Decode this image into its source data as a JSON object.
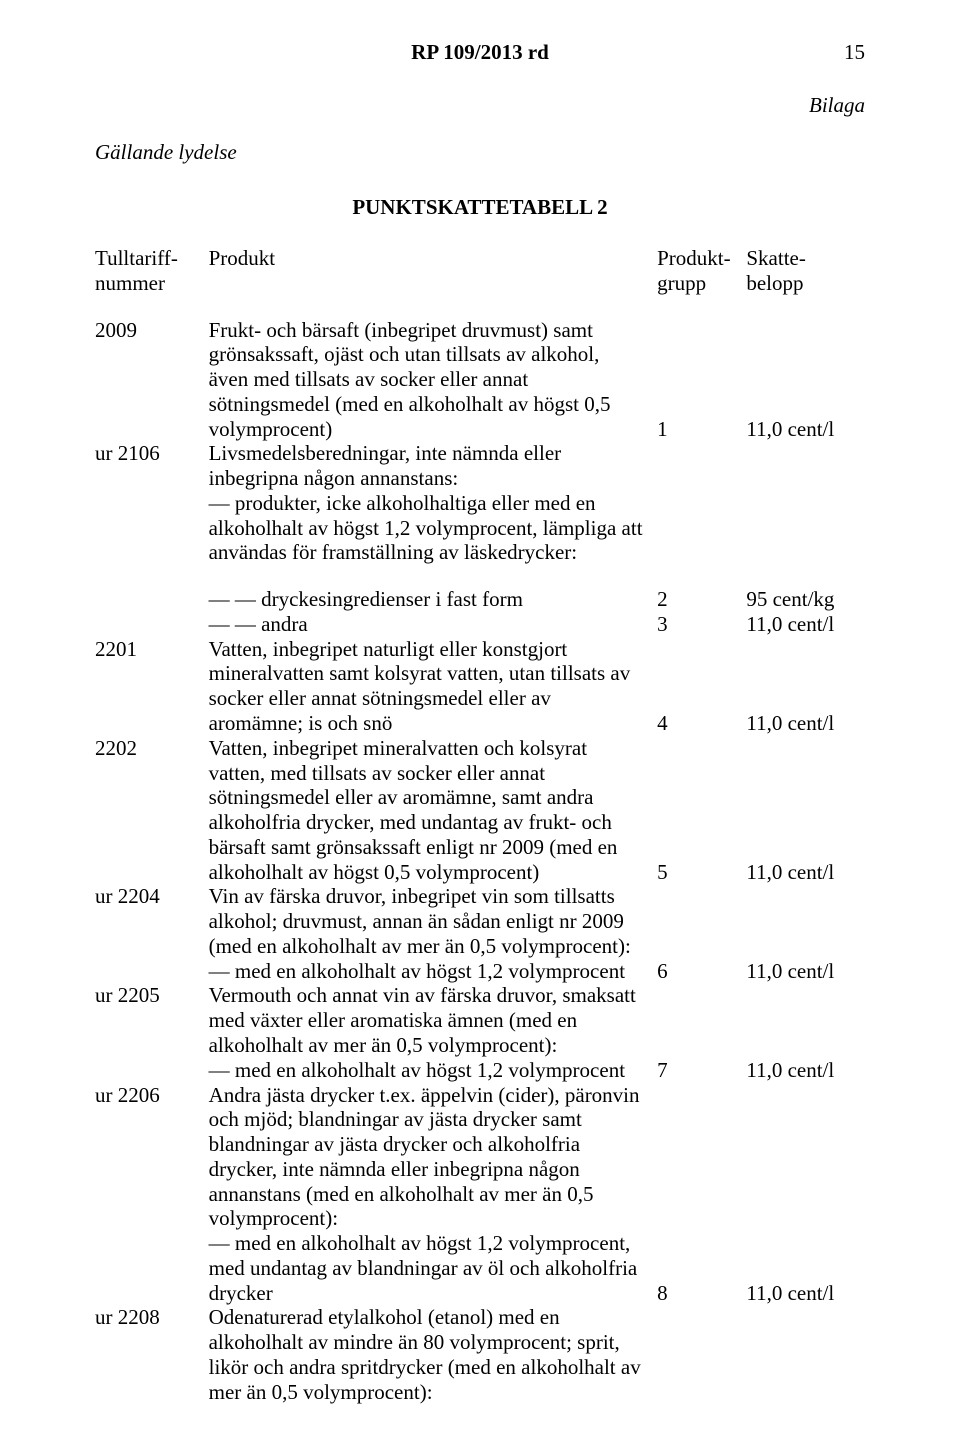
{
  "header": {
    "doc_ref": "RP 109/2013 rd",
    "page_no": "15"
  },
  "bilaga": "Bilaga",
  "gallande": "Gällande lydelse",
  "table_title": "PUNKTSKATTETABELL 2",
  "thead": {
    "c1a": "Tulltariff-",
    "c1b": "nummer",
    "c2": "Produkt",
    "c3a": "Produkt-",
    "c3b": "grupp",
    "c4a": "Skatte-",
    "c4b": "belopp"
  },
  "rows": {
    "r2009": {
      "code": "2009",
      "desc": "Frukt- och bärsaft (inbegripet druvmust) samt grönsakssaft, ojäst och utan tillsats av alkohol, även med tillsats av socker eller annat sötningsmedel (med en alkoholhalt av högst 0,5 volymprocent)",
      "grp": "1",
      "amt": "11,0 cent/l"
    },
    "r2106": {
      "code": "ur 2106",
      "desc1": "Livsmedelsberedningar, inte nämnda eller inbegripna någon annanstans:",
      "desc2": "— produkter, icke alkoholhaltiga eller med en alkoholhalt av högst 1,2 volymprocent, lämpliga att användas för framställning av läskedrycker:"
    },
    "r_fast": {
      "desc": "— — dryckesingredienser i fast form",
      "grp": "2",
      "amt": "95 cent/kg"
    },
    "r_andra": {
      "desc": "— — andra",
      "grp": "3",
      "amt": "11,0 cent/l"
    },
    "r2201": {
      "code": "2201",
      "desc": "Vatten, inbegripet naturligt eller konstgjort mineralvatten samt kolsyrat vatten, utan tillsats av socker eller annat sötningsmedel eller av aromämne; is och snö",
      "grp": "4",
      "amt": "11,0 cent/l"
    },
    "r2202": {
      "code": "2202",
      "desc": "Vatten, inbegripet mineralvatten och kolsyrat vatten, med tillsats av socker eller annat sötningsmedel eller av aromämne, samt andra alkoholfria drycker, med undantag av frukt- och bärsaft samt grönsakssaft enligt nr 2009 (med en alkoholhalt av högst 0,5 volymprocent)",
      "grp": "5",
      "amt": "11,0 cent/l"
    },
    "r2204": {
      "code": "ur 2204",
      "desc1": "Vin av färska druvor, inbegripet vin som tillsatts alkohol; druvmust, annan än sådan enligt nr 2009 (med en alkoholhalt av mer än 0,5 volymprocent):",
      "desc2": "— med en alkoholhalt av högst 1,2 volymprocent",
      "grp": "6",
      "amt": "11,0 cent/l"
    },
    "r2205": {
      "code": "ur 2205",
      "desc1": "Vermouth och annat vin av färska druvor, smaksatt med växter eller aromatiska ämnen (med en alkoholhalt av mer än 0,5 volymprocent):",
      "desc2": "— med en alkoholhalt av högst 1,2 volymprocent",
      "grp": "7",
      "amt": "11,0 cent/l"
    },
    "r2206": {
      "code": "ur 2206",
      "desc1": "Andra jästa drycker t.ex. äppelvin (cider), päronvin och mjöd; blandningar av jästa drycker samt blandningar av jästa drycker och alkoholfria drycker, inte nämnda eller inbegripna någon annanstans (med en alkoholhalt av mer än 0,5 volymprocent):",
      "desc2": "— med en alkoholhalt av högst 1,2 volymprocent, med undantag av blandningar av öl och alkoholfria drycker",
      "grp": "8",
      "amt": "11,0 cent/l"
    },
    "r2208": {
      "code": "ur 2208",
      "desc": "Odenaturerad etylalkohol (etanol) med en alkoholhalt av mindre än 80 volymprocent; sprit, likör och andra spritdrycker (med en alkoholhalt av mer än 0,5 volymprocent):"
    }
  }
}
